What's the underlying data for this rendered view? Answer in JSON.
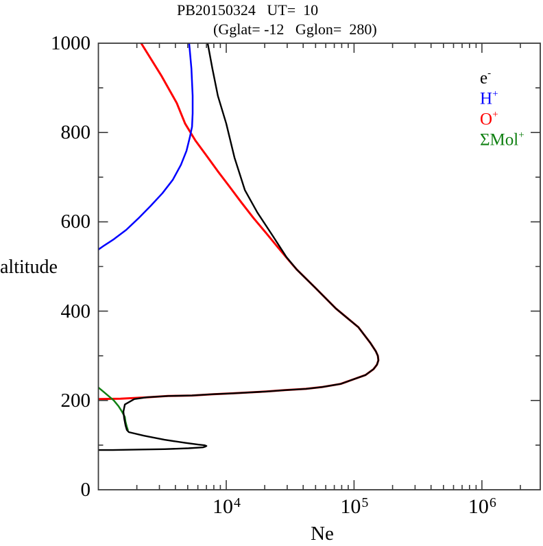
{
  "title": {
    "line1": "PB20150324   UT=  10",
    "line2": "(Gglat= -12   Gglon=  280)"
  },
  "axes": {
    "y_label": "altitude",
    "x_label": "Ne",
    "y_ticks": [
      {
        "label": "1000",
        "value": 1000
      },
      {
        "label": "800",
        "value": 800
      },
      {
        "label": "600",
        "value": 600
      },
      {
        "label": "400",
        "value": 400
      },
      {
        "label": "200",
        "value": 200
      },
      {
        "label": "0",
        "value": 0
      }
    ],
    "x_ticks": [
      {
        "base": "10",
        "exp": "4",
        "value": 10000
      },
      {
        "base": "10",
        "exp": "5",
        "value": 100000
      },
      {
        "base": "10",
        "exp": "6",
        "value": 1000000
      }
    ]
  },
  "legend": {
    "items": [
      {
        "label": "e",
        "sup": "-",
        "color": "#000000"
      },
      {
        "label": "H",
        "sup": "+",
        "color": "#0000ff"
      },
      {
        "label": "O",
        "sup": "+",
        "color": "#ff0000"
      },
      {
        "label": "ΣMol",
        "sup": "+",
        "color": "#108012"
      }
    ]
  },
  "chart_data": {
    "type": "line",
    "title": "PB20150324 UT= 10 (Gglat= -12 Gglon= 280)",
    "xlabel": "Ne",
    "ylabel": "altitude",
    "x_scale": "log",
    "xlim": [
      1000,
      2860000
    ],
    "ylim": [
      0,
      1000
    ],
    "x_major_ticks": [
      10000,
      100000,
      1000000
    ],
    "y_major_tick_step": 200,
    "y_minor_tick_step": 100,
    "grid": false,
    "legend_position": "top-right-inside",
    "series": [
      {
        "name": "e-",
        "color": "#000000",
        "points": [
          [
            7160,
            1000
          ],
          [
            7800,
            943
          ],
          [
            8600,
            882
          ],
          [
            10000,
            820
          ],
          [
            11600,
            744
          ],
          [
            14000,
            671
          ],
          [
            17500,
            621
          ],
          [
            23300,
            567
          ],
          [
            29600,
            521
          ],
          [
            35700,
            493
          ],
          [
            49800,
            452
          ],
          [
            72000,
            406
          ],
          [
            108000,
            364
          ],
          [
            134000,
            329
          ],
          [
            148000,
            310
          ],
          [
            153500,
            300
          ],
          [
            155000,
            290
          ],
          [
            151000,
            280
          ],
          [
            142000,
            270
          ],
          [
            123000,
            257
          ],
          [
            96000,
            246
          ],
          [
            78500,
            237
          ],
          [
            56000,
            230
          ],
          [
            42000,
            226
          ],
          [
            28600,
            223
          ],
          [
            20500,
            220
          ],
          [
            11300,
            216
          ],
          [
            7900,
            214
          ],
          [
            5400,
            211
          ],
          [
            3500,
            210
          ],
          [
            2400,
            207
          ],
          [
            1910,
            203
          ],
          [
            1610,
            191
          ],
          [
            1570,
            175
          ],
          [
            1590,
            160
          ],
          [
            1630,
            144
          ],
          [
            1670,
            134
          ],
          [
            1730,
            129
          ],
          [
            2270,
            121
          ],
          [
            3290,
            112
          ],
          [
            4760,
            105
          ],
          [
            6080,
            101
          ],
          [
            6800,
            99.5
          ],
          [
            7000,
            98
          ],
          [
            6800,
            96.2
          ],
          [
            6570,
            95
          ],
          [
            5070,
            93
          ],
          [
            3290,
            91
          ],
          [
            2020,
            90
          ],
          [
            1300,
            89
          ],
          [
            1000,
            89
          ]
        ]
      },
      {
        "name": "H+",
        "color": "#0000ff",
        "points": [
          [
            5130,
            1000
          ],
          [
            5340,
            943
          ],
          [
            5460,
            882
          ],
          [
            5460,
            843
          ],
          [
            5400,
            813
          ],
          [
            5200,
            790
          ],
          [
            4890,
            759
          ],
          [
            4430,
            728
          ],
          [
            3820,
            694
          ],
          [
            3170,
            664
          ],
          [
            2570,
            636
          ],
          [
            2060,
            608
          ],
          [
            1650,
            582
          ],
          [
            1320,
            561
          ],
          [
            1110,
            547
          ],
          [
            1000,
            538
          ]
        ]
      },
      {
        "name": "O+",
        "color": "#ff0000",
        "points": [
          [
            2160,
            1000
          ],
          [
            3100,
            928
          ],
          [
            4100,
            866
          ],
          [
            4770,
            820
          ],
          [
            5740,
            782
          ],
          [
            6900,
            751
          ],
          [
            8600,
            713
          ],
          [
            10600,
            679
          ],
          [
            13100,
            644
          ],
          [
            16400,
            608
          ],
          [
            20500,
            575
          ],
          [
            25200,
            544
          ],
          [
            30400,
            516
          ],
          [
            35700,
            493
          ],
          [
            49800,
            452
          ],
          [
            72000,
            406
          ],
          [
            108000,
            364
          ],
          [
            134000,
            329
          ],
          [
            148000,
            310
          ],
          [
            153500,
            300
          ],
          [
            155000,
            290
          ],
          [
            151000,
            280
          ],
          [
            142000,
            270
          ],
          [
            123000,
            257
          ],
          [
            96000,
            246
          ],
          [
            78500,
            237
          ],
          [
            56000,
            230
          ],
          [
            42000,
            226
          ],
          [
            28600,
            223
          ],
          [
            20500,
            220
          ],
          [
            11300,
            216
          ],
          [
            7900,
            214
          ],
          [
            5400,
            211
          ],
          [
            3500,
            210
          ],
          [
            2400,
            207
          ],
          [
            1490,
            204
          ],
          [
            1000,
            203
          ]
        ]
      },
      {
        "name": "ΣMol+",
        "color": "#108012",
        "points": [
          [
            1000,
            229
          ],
          [
            1080,
            221
          ],
          [
            1200,
            210
          ],
          [
            1320,
            200
          ],
          [
            1440,
            187
          ],
          [
            1530,
            175
          ],
          [
            1610,
            163
          ],
          [
            1630,
            152
          ],
          [
            1670,
            141
          ],
          [
            1700,
            134
          ]
        ]
      }
    ]
  }
}
